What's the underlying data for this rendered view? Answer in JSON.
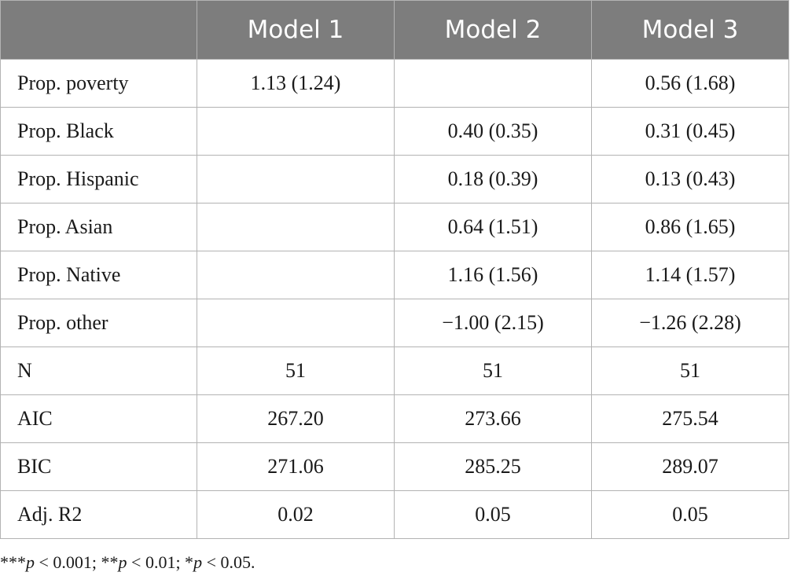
{
  "table": {
    "headers": [
      "",
      "Model 1",
      "Model 2",
      "Model 3"
    ],
    "rows": [
      {
        "label": "Prop. poverty",
        "values": [
          "1.13 (1.24)",
          "",
          "0.56 (1.68)"
        ]
      },
      {
        "label": "Prop. Black",
        "values": [
          "",
          "0.40 (0.35)",
          "0.31 (0.45)"
        ]
      },
      {
        "label": "Prop. Hispanic",
        "values": [
          "",
          "0.18 (0.39)",
          "0.13 (0.43)"
        ]
      },
      {
        "label": "Prop. Asian",
        "values": [
          "",
          "0.64 (1.51)",
          "0.86 (1.65)"
        ]
      },
      {
        "label": "Prop. Native",
        "values": [
          "",
          "1.16 (1.56)",
          "1.14 (1.57)"
        ]
      },
      {
        "label": "Prop. other",
        "values": [
          "",
          "−1.00 (2.15)",
          "−1.26 (2.28)"
        ]
      },
      {
        "label": "N",
        "values": [
          "51",
          "51",
          "51"
        ]
      },
      {
        "label": "AIC",
        "values": [
          "267.20",
          "273.66",
          "275.54"
        ]
      },
      {
        "label": "BIC",
        "values": [
          "271.06",
          "285.25",
          "289.07"
        ]
      },
      {
        "label": "Adj. R2",
        "values": [
          "0.02",
          "0.05",
          "0.05"
        ]
      }
    ]
  },
  "footnote": {
    "parts": [
      {
        "text": "***",
        "italic": false
      },
      {
        "text": "p",
        "italic": true
      },
      {
        "text": " < 0.001; **",
        "italic": false
      },
      {
        "text": "p",
        "italic": true
      },
      {
        "text": " < 0.01; *",
        "italic": false
      },
      {
        "text": "p",
        "italic": true
      },
      {
        "text": " < 0.05.",
        "italic": false
      }
    ]
  }
}
